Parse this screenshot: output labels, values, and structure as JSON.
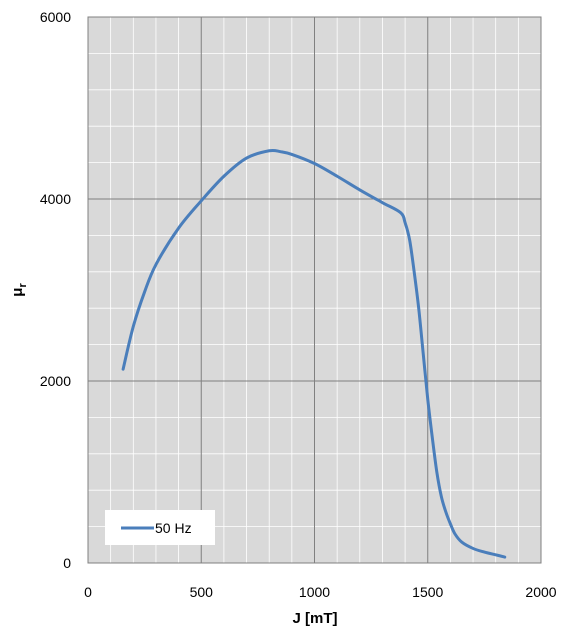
{
  "chart_data": {
    "type": "line",
    "title": "",
    "xlabel": "J [mT]",
    "ylabel_main": "μ",
    "ylabel_sub": "r",
    "xlim": [
      0,
      2000
    ],
    "ylim": [
      0,
      6000
    ],
    "x_major_ticks": [
      0,
      500,
      1000,
      1500,
      2000
    ],
    "y_major_ticks": [
      0,
      2000,
      4000,
      6000
    ],
    "x_minor_step": 100,
    "y_minor_step": 400,
    "x_tick_labels": [
      "0",
      "500",
      "1000",
      "1500",
      "2000"
    ],
    "y_tick_labels": [
      "0",
      "2000",
      "4000",
      "6000"
    ],
    "grid": true,
    "legend_position": "bottom-left",
    "colors": {
      "plot_background": "#d9d9d9",
      "major_grid": "#808080",
      "minor_grid": "#ffffff",
      "series": "#4a7ebb"
    },
    "series": [
      {
        "name": "50 Hz",
        "x": [
          155,
          200,
          250,
          300,
          400,
          500,
          600,
          700,
          800,
          850,
          900,
          1000,
          1100,
          1200,
          1300,
          1380,
          1400,
          1420,
          1440,
          1460,
          1480,
          1500,
          1520,
          1540,
          1560,
          1580,
          1600,
          1620,
          1650,
          1700,
          1750,
          1800,
          1840
        ],
        "y": [
          2130,
          2600,
          2980,
          3280,
          3680,
          3980,
          4250,
          4450,
          4530,
          4520,
          4490,
          4390,
          4250,
          4100,
          3960,
          3850,
          3740,
          3550,
          3200,
          2800,
          2300,
          1800,
          1380,
          1000,
          730,
          560,
          430,
          320,
          230,
          160,
          120,
          90,
          65
        ]
      }
    ]
  }
}
